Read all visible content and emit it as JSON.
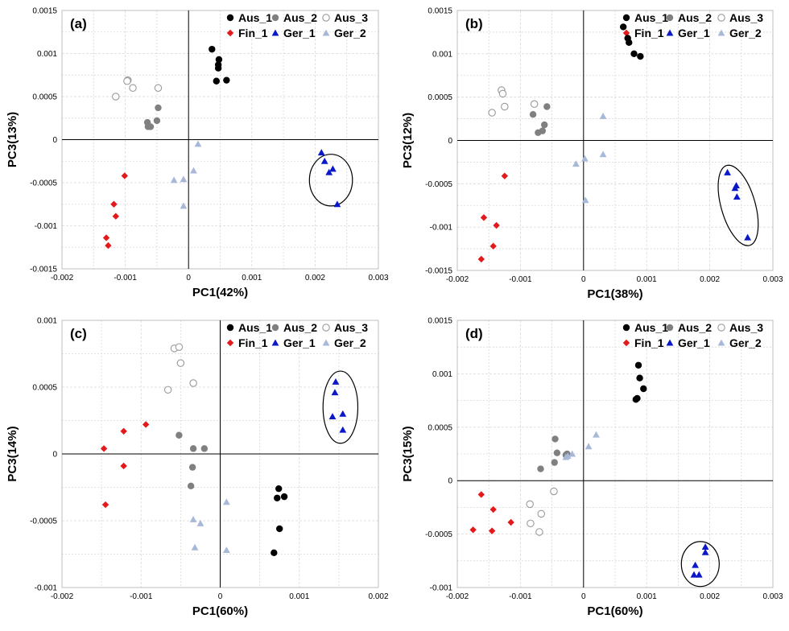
{
  "colors": {
    "Aus_1": "#000000",
    "Aus_2": "#808080",
    "Aus_3": "#ffffff",
    "Fin_1": "#e31a1c",
    "Ger_1": "#0a18c8",
    "Ger_2": "#a8b8d8"
  },
  "chart_data": [
    {
      "type": "scatter",
      "panel_label": "(a)",
      "xlabel": "PC1(42%)",
      "ylabel": "PC3(13%)",
      "xlim": [
        -0.002,
        0.003
      ],
      "ylim": [
        -0.0015,
        0.0015
      ],
      "xticks": [
        "-0.002",
        "-0.001",
        "0",
        "0.001",
        "0.002",
        "0.003"
      ],
      "yticks": [
        "-0.0015",
        "-0.001",
        "-0.0005",
        "0",
        "0.0005",
        "0.001",
        "0.0015"
      ],
      "legend": [
        [
          "Aus_1",
          "Aus_2",
          "Aus_3"
        ],
        [
          "Fin_1",
          "Ger_1",
          "Ger_2"
        ]
      ],
      "ellipse": {
        "cx": 0.00225,
        "cy": -0.00047,
        "rx": 0.00034,
        "ry": 0.0003
      },
      "series": [
        {
          "name": "Aus_1",
          "points": [
            [
              0.00037,
              0.00105
            ],
            [
              0.00048,
              0.00093
            ],
            [
              0.00047,
              0.00087
            ],
            [
              0.00047,
              0.00083
            ],
            [
              0.00044,
              0.00068
            ],
            [
              0.0006,
              0.00069
            ]
          ]
        },
        {
          "name": "Aus_2",
          "points": [
            [
              -0.00065,
              0.0002
            ],
            [
              -0.00064,
              0.00015
            ],
            [
              -0.0006,
              0.00015
            ],
            [
              -0.0005,
              0.00022
            ],
            [
              -0.00048,
              0.00037
            ]
          ]
        },
        {
          "name": "Aus_3",
          "points": [
            [
              -0.00096,
              0.00069
            ],
            [
              -0.00088,
              0.0006
            ],
            [
              -0.00048,
              0.0006
            ],
            [
              -0.00115,
              0.0005
            ],
            [
              -0.00097,
              0.00068
            ]
          ]
        },
        {
          "name": "Fin_1",
          "points": [
            [
              -0.00101,
              -0.00042
            ],
            [
              -0.00118,
              -0.00075
            ],
            [
              -0.00115,
              -0.00089
            ],
            [
              -0.0013,
              -0.00114
            ],
            [
              -0.00127,
              -0.00123
            ]
          ]
        },
        {
          "name": "Ger_1",
          "points": [
            [
              0.0021,
              -0.00015
            ],
            [
              0.00215,
              -0.00025
            ],
            [
              0.00222,
              -0.00038
            ],
            [
              0.00228,
              -0.00034
            ],
            [
              0.00235,
              -0.00075
            ]
          ]
        },
        {
          "name": "Ger_2",
          "points": [
            [
              0.00015,
              -5e-05
            ],
            [
              8e-05,
              -0.00036
            ],
            [
              -8e-05,
              -0.00046
            ],
            [
              -0.00023,
              -0.00047
            ],
            [
              -8e-05,
              -0.00077
            ]
          ]
        }
      ]
    },
    {
      "type": "scatter",
      "panel_label": "(b)",
      "xlabel": "PC1(38%)",
      "ylabel": "PC3(12%)",
      "xlim": [
        -0.002,
        0.003
      ],
      "ylim": [
        -0.0015,
        0.0015
      ],
      "xticks": [
        "-0.002",
        "-0.001",
        "0",
        "0.001",
        "0.002",
        "0.003"
      ],
      "yticks": [
        "-0.0015",
        "-0.001",
        "-0.0005",
        "0",
        "0.0005",
        "0.001",
        "0.0015"
      ],
      "legend": [
        [
          "Aus_1",
          "Aus_2",
          "Aus_3"
        ],
        [
          "Fin_1",
          "Ger_1",
          "Ger_2"
        ]
      ],
      "ellipse": {
        "cx": 0.00245,
        "cy": -0.00075,
        "rx": 0.00027,
        "ry": 0.00048,
        "angle": -16
      },
      "series": [
        {
          "name": "Aus_1",
          "points": [
            [
              0.00063,
              0.00131
            ],
            [
              0.0007,
              0.00118
            ],
            [
              0.00072,
              0.00113
            ],
            [
              0.0008,
              0.001
            ],
            [
              0.0009,
              0.00097
            ]
          ]
        },
        {
          "name": "Aus_2",
          "points": [
            [
              -0.0008,
              0.0003
            ],
            [
              -0.00072,
              9e-05
            ],
            [
              -0.00065,
              0.00011
            ],
            [
              -0.00062,
              0.00018
            ],
            [
              -0.00058,
              0.00039
            ]
          ]
        },
        {
          "name": "Aus_3",
          "points": [
            [
              -0.0013,
              0.00058
            ],
            [
              -0.00128,
              0.00054
            ],
            [
              -0.00125,
              0.00039
            ],
            [
              -0.00145,
              0.00032
            ],
            [
              -0.00078,
              0.00042
            ]
          ]
        },
        {
          "name": "Fin_1",
          "points": [
            [
              -0.00125,
              -0.00041
            ],
            [
              -0.00158,
              -0.00089
            ],
            [
              -0.00138,
              -0.00098
            ],
            [
              -0.00143,
              -0.00122
            ],
            [
              -0.00162,
              -0.00137
            ]
          ]
        },
        {
          "name": "Ger_1",
          "points": [
            [
              0.00228,
              -0.00037
            ],
            [
              0.0024,
              -0.00055
            ],
            [
              0.00242,
              -0.00052
            ],
            [
              0.00243,
              -0.00065
            ],
            [
              0.0026,
              -0.00112
            ]
          ]
        },
        {
          "name": "Ger_2",
          "points": [
            [
              0.00031,
              0.00028
            ],
            [
              0.00031,
              -0.00016
            ],
            [
              2e-05,
              -0.00021
            ],
            [
              -0.00012,
              -0.00027
            ],
            [
              3e-05,
              -0.00069
            ]
          ]
        }
      ]
    },
    {
      "type": "scatter",
      "panel_label": "(c)",
      "xlabel": "PC1(60%)",
      "ylabel": "PC3(14%)",
      "xlim": [
        -0.002,
        0.002
      ],
      "ylim": [
        -0.001,
        0.001
      ],
      "xticks": [
        "-0.002",
        "-0.001",
        "0",
        "0.001",
        "0.002"
      ],
      "yticks": [
        "-0.001",
        "-0.0005",
        "0",
        "0.0005",
        "0.001"
      ],
      "legend": [
        [
          "Aus_1",
          "Aus_2",
          "Aus_3"
        ],
        [
          "Fin_1",
          "Ger_1",
          "Ger_2"
        ]
      ],
      "ellipse": {
        "cx": 0.00152,
        "cy": 0.00035,
        "rx": 0.00022,
        "ry": 0.00027
      },
      "series": [
        {
          "name": "Aus_1",
          "points": [
            [
              0.00074,
              -0.00026
            ],
            [
              0.00072,
              -0.00033
            ],
            [
              0.00081,
              -0.00032
            ],
            [
              0.00075,
              -0.00056
            ],
            [
              0.00068,
              -0.00074
            ]
          ]
        },
        {
          "name": "Aus_2",
          "points": [
            [
              -0.00052,
              0.00014
            ],
            [
              -0.00034,
              4e-05
            ],
            [
              -0.0002,
              4e-05
            ],
            [
              -0.00035,
              -0.0001
            ],
            [
              -0.00037,
              -0.00024
            ]
          ]
        },
        {
          "name": "Aus_3",
          "points": [
            [
              -0.00058,
              0.00079
            ],
            [
              -0.00052,
              0.0008
            ],
            [
              -0.0005,
              0.00068
            ],
            [
              -0.00034,
              0.00053
            ],
            [
              -0.00066,
              0.00048
            ]
          ]
        },
        {
          "name": "Fin_1",
          "points": [
            [
              -0.00094,
              0.00022
            ],
            [
              -0.00122,
              0.00017
            ],
            [
              -0.00147,
              4e-05
            ],
            [
              -0.00122,
              -9e-05
            ],
            [
              -0.00145,
              -0.00038
            ]
          ]
        },
        {
          "name": "Ger_1",
          "points": [
            [
              0.00146,
              0.00054
            ],
            [
              0.00145,
              0.00046
            ],
            [
              0.00155,
              0.0003
            ],
            [
              0.00142,
              0.00028
            ],
            [
              0.00155,
              0.00018
            ]
          ]
        },
        {
          "name": "Ger_2",
          "points": [
            [
              8e-05,
              -0.00036
            ],
            [
              -0.00034,
              -0.00049
            ],
            [
              -0.00025,
              -0.00052
            ],
            [
              -0.00032,
              -0.0007
            ],
            [
              8e-05,
              -0.00072
            ]
          ]
        }
      ]
    },
    {
      "type": "scatter",
      "panel_label": "(d)",
      "xlabel": "PC1(60%)",
      "ylabel": "PC3(15%)",
      "xlim": [
        -0.002,
        0.003
      ],
      "ylim": [
        -0.001,
        0.0015
      ],
      "xticks": [
        "-0.002",
        "-0.001",
        "0",
        "0.001",
        "0.002",
        "0.003"
      ],
      "yticks": [
        "-0.001",
        "-0.0005",
        "0",
        "0.0005",
        "0.001",
        "0.0015"
      ],
      "legend": [
        [
          "Aus_1",
          "Aus_2",
          "Aus_3"
        ],
        [
          "Fin_1",
          "Ger_1",
          "Ger_2"
        ]
      ],
      "ellipse": {
        "cx": 0.00185,
        "cy": -0.00078,
        "rx": 0.0003,
        "ry": 0.00021
      },
      "series": [
        {
          "name": "Aus_1",
          "points": [
            [
              0.00087,
              0.00108
            ],
            [
              0.00089,
              0.00096
            ],
            [
              0.00095,
              0.00086
            ],
            [
              0.00085,
              0.00077
            ],
            [
              0.00083,
              0.00076
            ]
          ]
        },
        {
          "name": "Aus_2",
          "points": [
            [
              -0.00045,
              0.00039
            ],
            [
              -0.00042,
              0.00026
            ],
            [
              -0.00046,
              0.00017
            ],
            [
              -0.00028,
              0.00024
            ],
            [
              -0.00026,
              0.00025
            ],
            [
              -0.00068,
              0.00011
            ]
          ]
        },
        {
          "name": "Aus_3",
          "points": [
            [
              -0.00047,
              -0.0001
            ],
            [
              -0.00085,
              -0.00022
            ],
            [
              -0.00067,
              -0.00031
            ],
            [
              -0.00084,
              -0.0004
            ],
            [
              -0.0007,
              -0.00048
            ]
          ]
        },
        {
          "name": "Fin_1",
          "points": [
            [
              -0.00162,
              -0.00013
            ],
            [
              -0.00143,
              -0.00027
            ],
            [
              -0.00115,
              -0.00039
            ],
            [
              -0.00175,
              -0.00046
            ],
            [
              -0.00145,
              -0.00047
            ]
          ]
        },
        {
          "name": "Ger_1",
          "points": [
            [
              0.00193,
              -0.00062
            ],
            [
              0.00193,
              -0.00067
            ],
            [
              0.00177,
              -0.00079
            ],
            [
              0.00175,
              -0.00088
            ],
            [
              0.00183,
              -0.00088
            ]
          ]
        },
        {
          "name": "Ger_2",
          "points": [
            [
              0.0002,
              0.00043
            ],
            [
              8e-05,
              0.00032
            ],
            [
              -0.00018,
              0.00025
            ],
            [
              -0.00025,
              0.00023
            ],
            [
              -0.00028,
              0.00022
            ]
          ]
        }
      ]
    }
  ]
}
